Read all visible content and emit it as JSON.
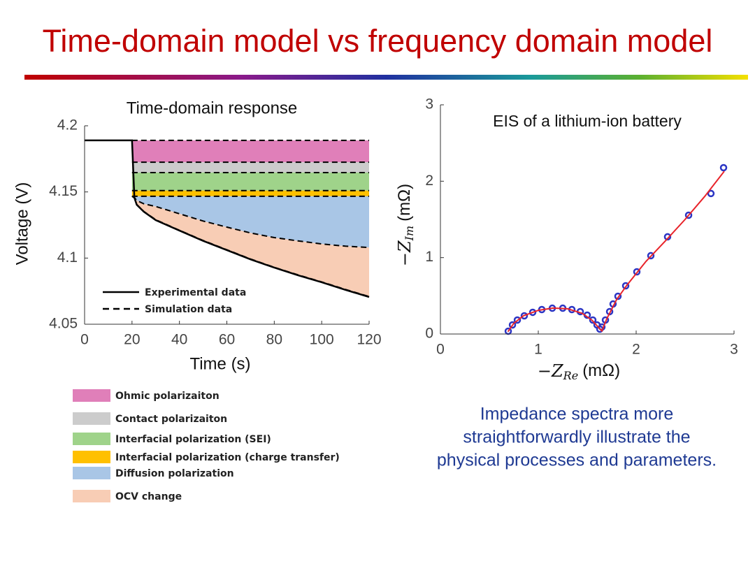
{
  "slide_title": "Time-domain model vs frequency domain model",
  "caption": [
    "Impedance spectra more",
    "straightforwardly illustrate the",
    "physical processes and parameters."
  ],
  "chart_data": [
    {
      "type": "line",
      "title": "Time-domain response",
      "xlabel": "Time (s)",
      "ylabel": "Voltage (V)",
      "xlim": [
        0,
        120
      ],
      "xticks": [
        0,
        20,
        40,
        60,
        80,
        100,
        120
      ],
      "ylim": [
        4.05,
        4.2
      ],
      "yticks": [
        4.05,
        4.1,
        4.15,
        4.2
      ],
      "series": [
        {
          "name": "Experimental data",
          "color": "#000000",
          "style": "solid",
          "x": [
            0,
            20,
            21,
            22,
            25,
            30,
            40,
            50,
            60,
            70,
            80,
            90,
            100,
            110,
            120
          ],
          "values": [
            4.189,
            4.189,
            4.1456,
            4.1403,
            4.135,
            4.1287,
            4.1208,
            4.113,
            4.106,
            4.099,
            4.0928,
            4.087,
            4.0817,
            4.076,
            4.0706
          ]
        }
      ],
      "simulation": {
        "name": "Simulation data",
        "color": "#000000",
        "style": "dashed",
        "x": [
          20,
          21,
          22,
          25,
          30,
          40,
          50,
          60,
          70,
          80,
          90,
          100,
          110,
          120
        ],
        "curves": [
          [
            4.189,
            4.189,
            4.189,
            4.189,
            4.189,
            4.189,
            4.189,
            4.189,
            4.189,
            4.189,
            4.189,
            4.189,
            4.189,
            4.189
          ],
          [
            4.1725,
            4.1725,
            4.1725,
            4.1725,
            4.1725,
            4.1725,
            4.1725,
            4.1725,
            4.1725,
            4.1725,
            4.1725,
            4.1725,
            4.1725,
            4.1725
          ],
          [
            4.1646,
            4.1646,
            4.1646,
            4.1646,
            4.1646,
            4.1646,
            4.1646,
            4.1646,
            4.1646,
            4.1646,
            4.1646,
            4.1646,
            4.1646,
            4.1646
          ],
          [
            4.151,
            4.151,
            4.151,
            4.151,
            4.151,
            4.151,
            4.151,
            4.151,
            4.151,
            4.151,
            4.151,
            4.151,
            4.151,
            4.151
          ],
          [
            4.1467,
            4.1467,
            4.1467,
            4.1467,
            4.1467,
            4.1467,
            4.1467,
            4.1467,
            4.1467,
            4.1467,
            4.1467,
            4.1467,
            4.1467,
            4.1467
          ],
          [
            4.1467,
            4.1458,
            4.1435,
            4.141,
            4.139,
            4.1335,
            4.128,
            4.1234,
            4.119,
            4.1155,
            4.113,
            4.1107,
            4.109,
            4.108
          ],
          [
            4.1467,
            4.1455,
            4.1405,
            4.1352,
            4.129,
            4.121,
            4.1133,
            4.1063,
            4.0993,
            4.093,
            4.0873,
            4.082,
            4.0763,
            4.0709
          ]
        ]
      },
      "bands": [
        {
          "name": "Ohmic polarizaiton",
          "color": "#e07fb9"
        },
        {
          "name": "Contact polarizaiton",
          "color": "#cccccc"
        },
        {
          "name": "Interfacial polarization (SEI)",
          "color": "#9fd38a"
        },
        {
          "name": "Interfacial polarization (charge transfer)",
          "color": "#ffc000"
        },
        {
          "name": "Diffusion polarization",
          "color": "#a9c6e6"
        },
        {
          "name": "OCV change",
          "color": "#f8cdb5"
        }
      ]
    },
    {
      "type": "scatter",
      "title": "EIS of a lithium-ion battery",
      "xlabel": {
        "main": "−Z",
        "sub": "Re",
        "unit": "(mΩ)"
      },
      "ylabel": {
        "main": "−Z",
        "sub": "Im",
        "unit": "(mΩ)"
      },
      "xlim": [
        0,
        3
      ],
      "xticks": [
        0,
        1,
        2,
        3
      ],
      "ylim": [
        0,
        3
      ],
      "yticks": [
        0,
        1,
        2,
        3
      ],
      "series": [
        {
          "color": "#2b35c4",
          "mode": "markers",
          "x": [
            0.693,
            0.736,
            0.786,
            0.857,
            0.943,
            1.036,
            1.143,
            1.25,
            1.343,
            1.429,
            1.5,
            1.557,
            1.6,
            1.629,
            1.65,
            1.686,
            1.729,
            1.764,
            1.814,
            1.893,
            2.007,
            2.15,
            2.321,
            2.536,
            2.764,
            2.893
          ],
          "values": [
            0.037,
            0.119,
            0.183,
            0.238,
            0.284,
            0.32,
            0.338,
            0.338,
            0.32,
            0.293,
            0.247,
            0.183,
            0.119,
            0.064,
            0.091,
            0.183,
            0.293,
            0.393,
            0.494,
            0.631,
            0.814,
            1.025,
            1.272,
            1.555,
            1.839,
            2.177
          ]
        },
        {
          "color": "#e8232a",
          "mode": "line",
          "x": [
            0.69,
            0.75,
            0.85,
            1.0,
            1.15,
            1.3,
            1.45,
            1.55,
            1.62,
            1.65,
            1.7,
            1.8,
            1.9,
            2.1,
            2.3,
            2.5,
            2.7,
            2.9
          ],
          "values": [
            0.03,
            0.14,
            0.24,
            0.31,
            0.34,
            0.33,
            0.27,
            0.18,
            0.08,
            0.04,
            0.2,
            0.45,
            0.63,
            0.95,
            1.22,
            1.5,
            1.8,
            2.13
          ]
        }
      ]
    }
  ]
}
